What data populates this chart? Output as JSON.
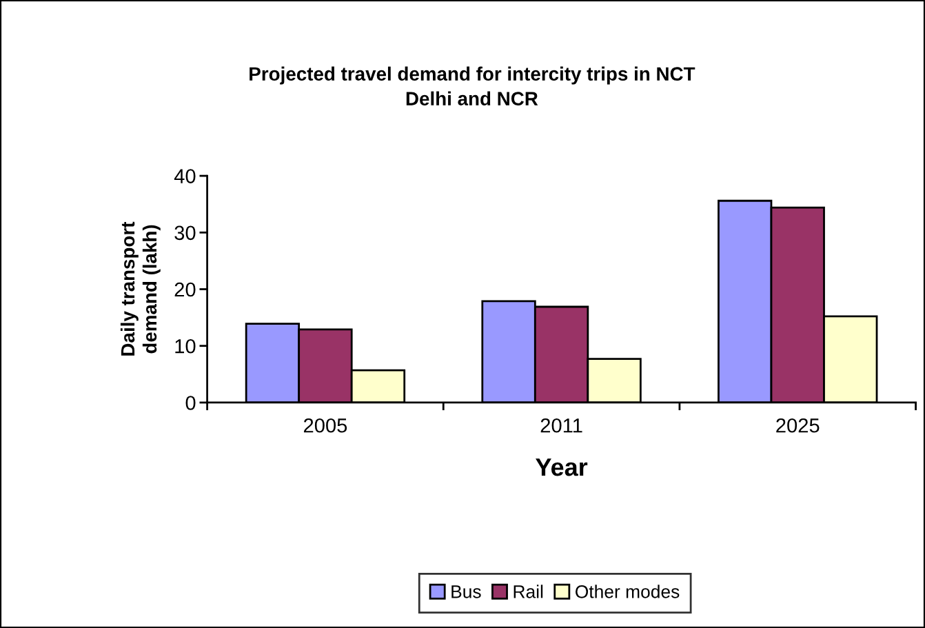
{
  "chart_data": {
    "type": "bar",
    "title": "Projected travel demand for intercity trips in NCT\nDelhi and NCR",
    "xlabel": "Year",
    "ylabel": "Daily transport\ndemand (lakh)",
    "categories": [
      "2005",
      "2011",
      "2025"
    ],
    "series": [
      {
        "name": "Bus",
        "color": "#9999ff",
        "values": [
          13.9,
          17.9,
          35.6
        ]
      },
      {
        "name": "Rail",
        "color": "#993366",
        "values": [
          12.9,
          16.9,
          34.4
        ]
      },
      {
        "name": "Other modes",
        "color": "#ffffcc",
        "values": [
          5.7,
          7.7,
          15.2
        ]
      }
    ],
    "ylim": [
      0,
      40
    ],
    "yticks": [
      0,
      10,
      20,
      30,
      40
    ],
    "grid": false,
    "legend": "bottom"
  }
}
